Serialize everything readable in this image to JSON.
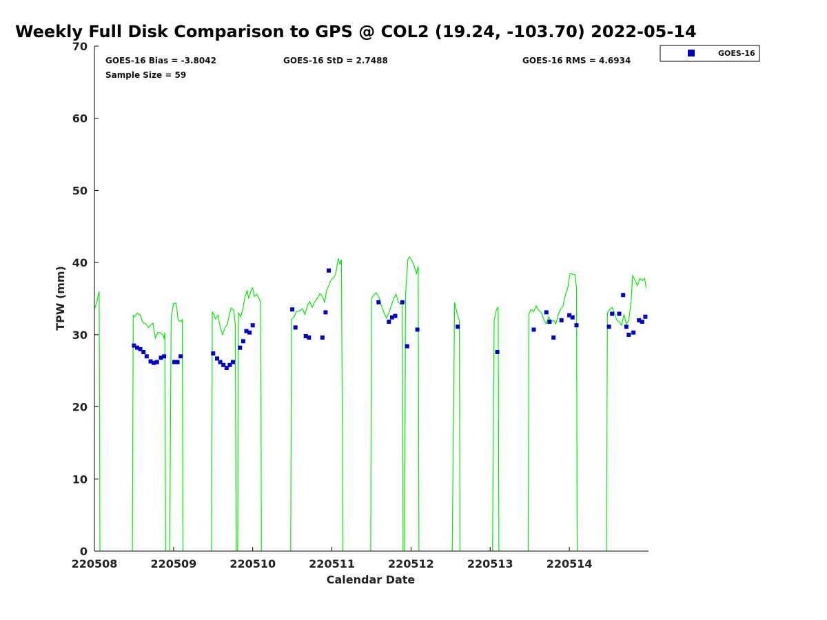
{
  "chart_data": {
    "type": "scatter",
    "title": "Weekly Full Disk Comparison to GPS @ COL2 (19.24, -103.70) 2022-05-14",
    "xlabel": "Calendar Date",
    "ylabel": "TPW (mm)",
    "xlim": [
      0,
      7
    ],
    "ylim": [
      0,
      70
    ],
    "x_ticks": [
      {
        "value": 0,
        "label": "220508"
      },
      {
        "value": 1,
        "label": "220509"
      },
      {
        "value": 2,
        "label": "220510"
      },
      {
        "value": 3,
        "label": "220511"
      },
      {
        "value": 4,
        "label": "220512"
      },
      {
        "value": 5,
        "label": "220513"
      },
      {
        "value": 6,
        "label": "220514"
      }
    ],
    "y_ticks": [
      0,
      10,
      20,
      30,
      40,
      50,
      60,
      70
    ],
    "x_unit": "days from 220508 00Z",
    "grid": false,
    "legend_position": "top-right, outside plot",
    "stats": {
      "bias": "GOES-16 Bias = -3.8042",
      "std": "GOES-16 StD = 2.7488",
      "rms": "GOES-16 RMS = 4.6934",
      "sample": "Sample Size = 59"
    },
    "series": [
      {
        "name": "GOES-16",
        "kind": "scatter",
        "color": "#0000cc",
        "points": [
          [
            0.5,
            28.5
          ],
          [
            0.54,
            28.2
          ],
          [
            0.58,
            28.0
          ],
          [
            0.62,
            27.6
          ],
          [
            0.66,
            27.0
          ],
          [
            0.71,
            26.3
          ],
          [
            0.75,
            26.1
          ],
          [
            0.79,
            26.2
          ],
          [
            0.84,
            26.8
          ],
          [
            0.88,
            27.0
          ],
          [
            1.01,
            26.2
          ],
          [
            1.05,
            26.2
          ],
          [
            1.09,
            27.0
          ],
          [
            1.5,
            27.4
          ],
          [
            1.55,
            26.7
          ],
          [
            1.59,
            26.2
          ],
          [
            1.63,
            25.8
          ],
          [
            1.67,
            25.4
          ],
          [
            1.71,
            25.8
          ],
          [
            1.75,
            26.2
          ],
          [
            1.84,
            28.2
          ],
          [
            1.88,
            29.1
          ],
          [
            1.92,
            30.5
          ],
          [
            1.96,
            30.3
          ],
          [
            2.0,
            31.3
          ],
          [
            2.5,
            33.5
          ],
          [
            2.54,
            31.0
          ],
          [
            2.67,
            29.8
          ],
          [
            2.71,
            29.6
          ],
          [
            2.88,
            29.6
          ],
          [
            2.92,
            33.1
          ],
          [
            2.96,
            38.9
          ],
          [
            3.59,
            34.5
          ],
          [
            3.72,
            31.8
          ],
          [
            3.76,
            32.4
          ],
          [
            3.8,
            32.6
          ],
          [
            3.89,
            34.5
          ],
          [
            3.95,
            28.4
          ],
          [
            4.08,
            30.7
          ],
          [
            4.59,
            31.1
          ],
          [
            5.09,
            27.6
          ],
          [
            5.55,
            30.7
          ],
          [
            5.71,
            33.1
          ],
          [
            5.75,
            31.8
          ],
          [
            5.8,
            29.6
          ],
          [
            5.9,
            32.0
          ],
          [
            6.0,
            32.7
          ],
          [
            6.04,
            32.4
          ],
          [
            6.09,
            31.3
          ],
          [
            6.5,
            31.1
          ],
          [
            6.54,
            32.9
          ],
          [
            6.63,
            32.9
          ],
          [
            6.68,
            35.5
          ],
          [
            6.72,
            31.1
          ],
          [
            6.75,
            30.0
          ],
          [
            6.81,
            30.3
          ],
          [
            6.88,
            32.0
          ],
          [
            6.92,
            31.8
          ],
          [
            6.96,
            32.5
          ]
        ]
      },
      {
        "name": "GPS",
        "kind": "line",
        "color": "#00ee00",
        "segments": [
          [
            [
              0.0,
              33.5
            ],
            [
              0.03,
              34.5
            ],
            [
              0.06,
              36.0
            ],
            [
              0.07,
              0
            ]
          ],
          [
            [
              0.48,
              0
            ],
            [
              0.49,
              32.7
            ],
            [
              0.51,
              32.5
            ],
            [
              0.54,
              33.0
            ],
            [
              0.58,
              32.7
            ],
            [
              0.61,
              31.7
            ],
            [
              0.65,
              31.5
            ],
            [
              0.68,
              31.0
            ],
            [
              0.71,
              31.3
            ],
            [
              0.74,
              31.6
            ],
            [
              0.77,
              29.5
            ],
            [
              0.8,
              30.3
            ],
            [
              0.83,
              30.3
            ],
            [
              0.86,
              30.0
            ],
            [
              0.88,
              29.5
            ],
            [
              0.89,
              30.3
            ],
            [
              0.9,
              0
            ]
          ],
          [
            [
              0.95,
              0
            ],
            [
              0.97,
              32.5
            ],
            [
              1.0,
              34.3
            ],
            [
              1.03,
              34.4
            ],
            [
              1.06,
              32.0
            ],
            [
              1.09,
              31.8
            ],
            [
              1.11,
              32.1
            ],
            [
              1.12,
              0
            ]
          ],
          [
            [
              1.48,
              0
            ],
            [
              1.49,
              33.2
            ],
            [
              1.53,
              32.2
            ],
            [
              1.56,
              32.7
            ],
            [
              1.59,
              31.0
            ],
            [
              1.62,
              30.0
            ],
            [
              1.65,
              31.0
            ],
            [
              1.68,
              31.5
            ],
            [
              1.71,
              33.0
            ],
            [
              1.73,
              33.7
            ],
            [
              1.76,
              33.4
            ],
            [
              1.78,
              31.5
            ],
            [
              1.79,
              0
            ]
          ],
          [
            [
              1.81,
              0
            ],
            [
              1.82,
              33.0
            ],
            [
              1.85,
              32.5
            ],
            [
              1.88,
              33.8
            ],
            [
              1.9,
              35.2
            ],
            [
              1.93,
              36.1
            ],
            [
              1.95,
              35.0
            ],
            [
              1.98,
              36.2
            ],
            [
              2.0,
              36.5
            ],
            [
              2.02,
              35.3
            ],
            [
              2.05,
              35.6
            ],
            [
              2.08,
              35.0
            ],
            [
              2.1,
              34.5
            ],
            [
              2.11,
              0
            ]
          ],
          [
            [
              2.48,
              0
            ],
            [
              2.49,
              32.2
            ],
            [
              2.52,
              32.4
            ],
            [
              2.55,
              33.2
            ],
            [
              2.59,
              33.3
            ],
            [
              2.63,
              33.6
            ],
            [
              2.66,
              32.8
            ],
            [
              2.69,
              34.0
            ],
            [
              2.72,
              34.6
            ],
            [
              2.75,
              33.8
            ],
            [
              2.78,
              34.5
            ],
            [
              2.82,
              35.1
            ],
            [
              2.85,
              35.7
            ],
            [
              2.88,
              35.3
            ],
            [
              2.91,
              34.5
            ],
            [
              2.93,
              36.0
            ],
            [
              2.96,
              36.8
            ],
            [
              2.99,
              37.6
            ],
            [
              3.02,
              37.9
            ],
            [
              3.05,
              38.5
            ],
            [
              3.08,
              40.6
            ],
            [
              3.1,
              39.8
            ],
            [
              3.12,
              40.4
            ],
            [
              3.14,
              0
            ]
          ],
          [
            [
              3.49,
              0
            ],
            [
              3.5,
              35.0
            ],
            [
              3.53,
              35.5
            ],
            [
              3.56,
              35.8
            ],
            [
              3.59,
              35.3
            ],
            [
              3.62,
              34.2
            ],
            [
              3.66,
              33.0
            ],
            [
              3.69,
              32.3
            ],
            [
              3.72,
              33.0
            ],
            [
              3.75,
              34.0
            ],
            [
              3.78,
              35.0
            ],
            [
              3.81,
              35.6
            ],
            [
              3.84,
              34.5
            ],
            [
              3.87,
              34.2
            ],
            [
              3.89,
              34.5
            ],
            [
              3.9,
              0
            ]
          ],
          [
            [
              3.92,
              0
            ],
            [
              3.93,
              35.5
            ],
            [
              3.96,
              40.4
            ],
            [
              3.98,
              40.8
            ],
            [
              4.01,
              40.3
            ],
            [
              4.04,
              39.5
            ],
            [
              4.07,
              38.5
            ],
            [
              4.09,
              39.5
            ],
            [
              4.1,
              0
            ]
          ],
          [
            [
              4.52,
              0
            ],
            [
              4.55,
              34.5
            ],
            [
              4.58,
              33.0
            ],
            [
              4.61,
              32.0
            ],
            [
              4.62,
              0
            ]
          ],
          [
            [
              5.03,
              0
            ],
            [
              5.05,
              32.0
            ],
            [
              5.08,
              33.5
            ],
            [
              5.1,
              33.8
            ],
            [
              5.11,
              0
            ]
          ],
          [
            [
              5.48,
              0
            ],
            [
              5.49,
              33.0
            ],
            [
              5.52,
              33.5
            ],
            [
              5.55,
              33.2
            ],
            [
              5.58,
              34.0
            ],
            [
              5.61,
              33.4
            ],
            [
              5.65,
              33.0
            ],
            [
              5.68,
              32.0
            ],
            [
              5.71,
              31.5
            ],
            [
              5.74,
              32.5
            ],
            [
              5.77,
              31.8
            ],
            [
              5.8,
              32.0
            ],
            [
              5.83,
              31.5
            ],
            [
              5.86,
              32.8
            ],
            [
              5.89,
              33.5
            ],
            [
              5.92,
              34.0
            ],
            [
              5.95,
              35.5
            ],
            [
              5.98,
              36.5
            ],
            [
              6.01,
              38.5
            ],
            [
              6.04,
              38.4
            ],
            [
              6.07,
              38.3
            ],
            [
              6.09,
              36.5
            ],
            [
              6.1,
              0
            ]
          ],
          [
            [
              6.47,
              0
            ],
            [
              6.48,
              33.0
            ],
            [
              6.51,
              33.5
            ],
            [
              6.54,
              33.8
            ],
            [
              6.57,
              33.0
            ],
            [
              6.6,
              32.0
            ],
            [
              6.63,
              31.8
            ],
            [
              6.66,
              31.3
            ],
            [
              6.69,
              32.8
            ],
            [
              6.72,
              31.5
            ],
            [
              6.75,
              32.0
            ],
            [
              6.78,
              34.5
            ],
            [
              6.8,
              38.2
            ],
            [
              6.83,
              37.5
            ],
            [
              6.86,
              36.8
            ],
            [
              6.89,
              37.8
            ],
            [
              6.92,
              37.5
            ],
            [
              6.95,
              37.8
            ],
            [
              6.97,
              36.5
            ]
          ]
        ]
      }
    ]
  },
  "legend": {
    "items": [
      {
        "label": "GOES-16",
        "color": "#0000cc",
        "marker": "square"
      }
    ]
  }
}
